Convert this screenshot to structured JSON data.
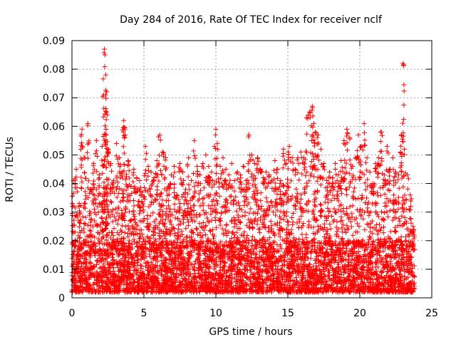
{
  "chart_data": {
    "type": "scatter",
    "title": "Day 284 of 2016, Rate Of TEC Index for receiver nclf",
    "xlabel": "GPS time / hours",
    "ylabel": "ROTI / TECUs",
    "xlim": [
      0,
      25
    ],
    "ylim": [
      0,
      0.09
    ],
    "xticks": [
      0,
      5,
      10,
      15,
      20,
      25
    ],
    "yticks": [
      0,
      0.01,
      0.02,
      0.03,
      0.04,
      0.05,
      0.06,
      0.07,
      0.08,
      0.09
    ],
    "xtick_labels": [
      "0",
      "5",
      "10",
      "15",
      "20",
      "25"
    ],
    "ytick_labels": [
      "0",
      "0.01",
      "0.02",
      "0.03",
      "0.04",
      "0.05",
      "0.06",
      "0.07",
      "0.08",
      "0.09"
    ],
    "grid": true,
    "marker": "plus",
    "color": "#ff0000",
    "series": [
      {
        "name": "ROTI",
        "x": [
          0.1,
          0.3,
          0.5,
          0.7,
          0.9,
          1.1,
          1.3,
          1.5,
          1.7,
          1.9,
          2.1,
          2.2,
          2.25,
          2.3,
          2.35,
          2.4,
          2.45,
          2.5,
          2.7,
          2.9,
          3.1,
          3.3,
          3.5,
          3.6,
          3.7,
          3.9,
          4.1,
          4.3,
          4.5,
          4.7,
          4.9,
          5.1,
          5.3,
          5.5,
          5.7,
          5.9,
          6.1,
          6.3,
          6.5,
          6.7,
          6.9,
          7.1,
          7.3,
          7.5,
          7.7,
          7.9,
          8.1,
          8.3,
          8.5,
          8.7,
          8.9,
          9.1,
          9.3,
          9.5,
          9.7,
          9.9,
          10.0,
          10.1,
          10.3,
          10.5,
          10.7,
          10.9,
          11.1,
          11.3,
          11.5,
          11.7,
          11.9,
          12.1,
          12.3,
          12.5,
          12.7,
          12.9,
          13.1,
          13.3,
          13.5,
          13.7,
          13.9,
          14.1,
          14.3,
          14.5,
          14.7,
          14.9,
          15.1,
          15.3,
          15.5,
          15.7,
          15.9,
          16.1,
          16.3,
          16.5,
          16.7,
          16.8,
          16.9,
          17.1,
          17.3,
          17.5,
          17.7,
          17.9,
          18.1,
          18.3,
          18.5,
          18.7,
          18.9,
          19.1,
          19.3,
          19.5,
          19.7,
          19.9,
          20.1,
          20.3,
          20.5,
          20.7,
          20.9,
          21.1,
          21.3,
          21.5,
          21.7,
          21.9,
          22.1,
          22.3,
          22.5,
          22.7,
          22.9,
          23.0,
          23.1,
          23.3,
          23.5,
          23.7
        ],
        "y": [
          0.041,
          0.045,
          0.033,
          0.059,
          0.049,
          0.061,
          0.038,
          0.047,
          0.055,
          0.043,
          0.053,
          0.071,
          0.087,
          0.085,
          0.078,
          0.065,
          0.064,
          0.052,
          0.047,
          0.041,
          0.054,
          0.049,
          0.044,
          0.062,
          0.057,
          0.048,
          0.039,
          0.045,
          0.042,
          0.041,
          0.037,
          0.053,
          0.046,
          0.044,
          0.042,
          0.048,
          0.057,
          0.051,
          0.049,
          0.039,
          0.043,
          0.046,
          0.036,
          0.047,
          0.044,
          0.038,
          0.049,
          0.041,
          0.055,
          0.046,
          0.043,
          0.047,
          0.05,
          0.046,
          0.044,
          0.053,
          0.059,
          0.054,
          0.046,
          0.049,
          0.045,
          0.043,
          0.047,
          0.041,
          0.044,
          0.043,
          0.046,
          0.041,
          0.057,
          0.05,
          0.047,
          0.049,
          0.045,
          0.042,
          0.044,
          0.043,
          0.041,
          0.048,
          0.045,
          0.041,
          0.052,
          0.047,
          0.053,
          0.049,
          0.045,
          0.049,
          0.051,
          0.049,
          0.063,
          0.065,
          0.067,
          0.061,
          0.058,
          0.057,
          0.052,
          0.047,
          0.041,
          0.044,
          0.042,
          0.047,
          0.043,
          0.048,
          0.055,
          0.059,
          0.056,
          0.046,
          0.049,
          0.057,
          0.053,
          0.061,
          0.049,
          0.044,
          0.04,
          0.047,
          0.049,
          0.058,
          0.043,
          0.053,
          0.045,
          0.049,
          0.044,
          0.043,
          0.057,
          0.082,
          0.052,
          0.043,
          0.036,
          0.025
        ],
        "baseline_band": {
          "typical_min": 0.002,
          "typical_max": 0.02,
          "x_start": 0.0,
          "x_end": 23.8
        }
      }
    ]
  }
}
